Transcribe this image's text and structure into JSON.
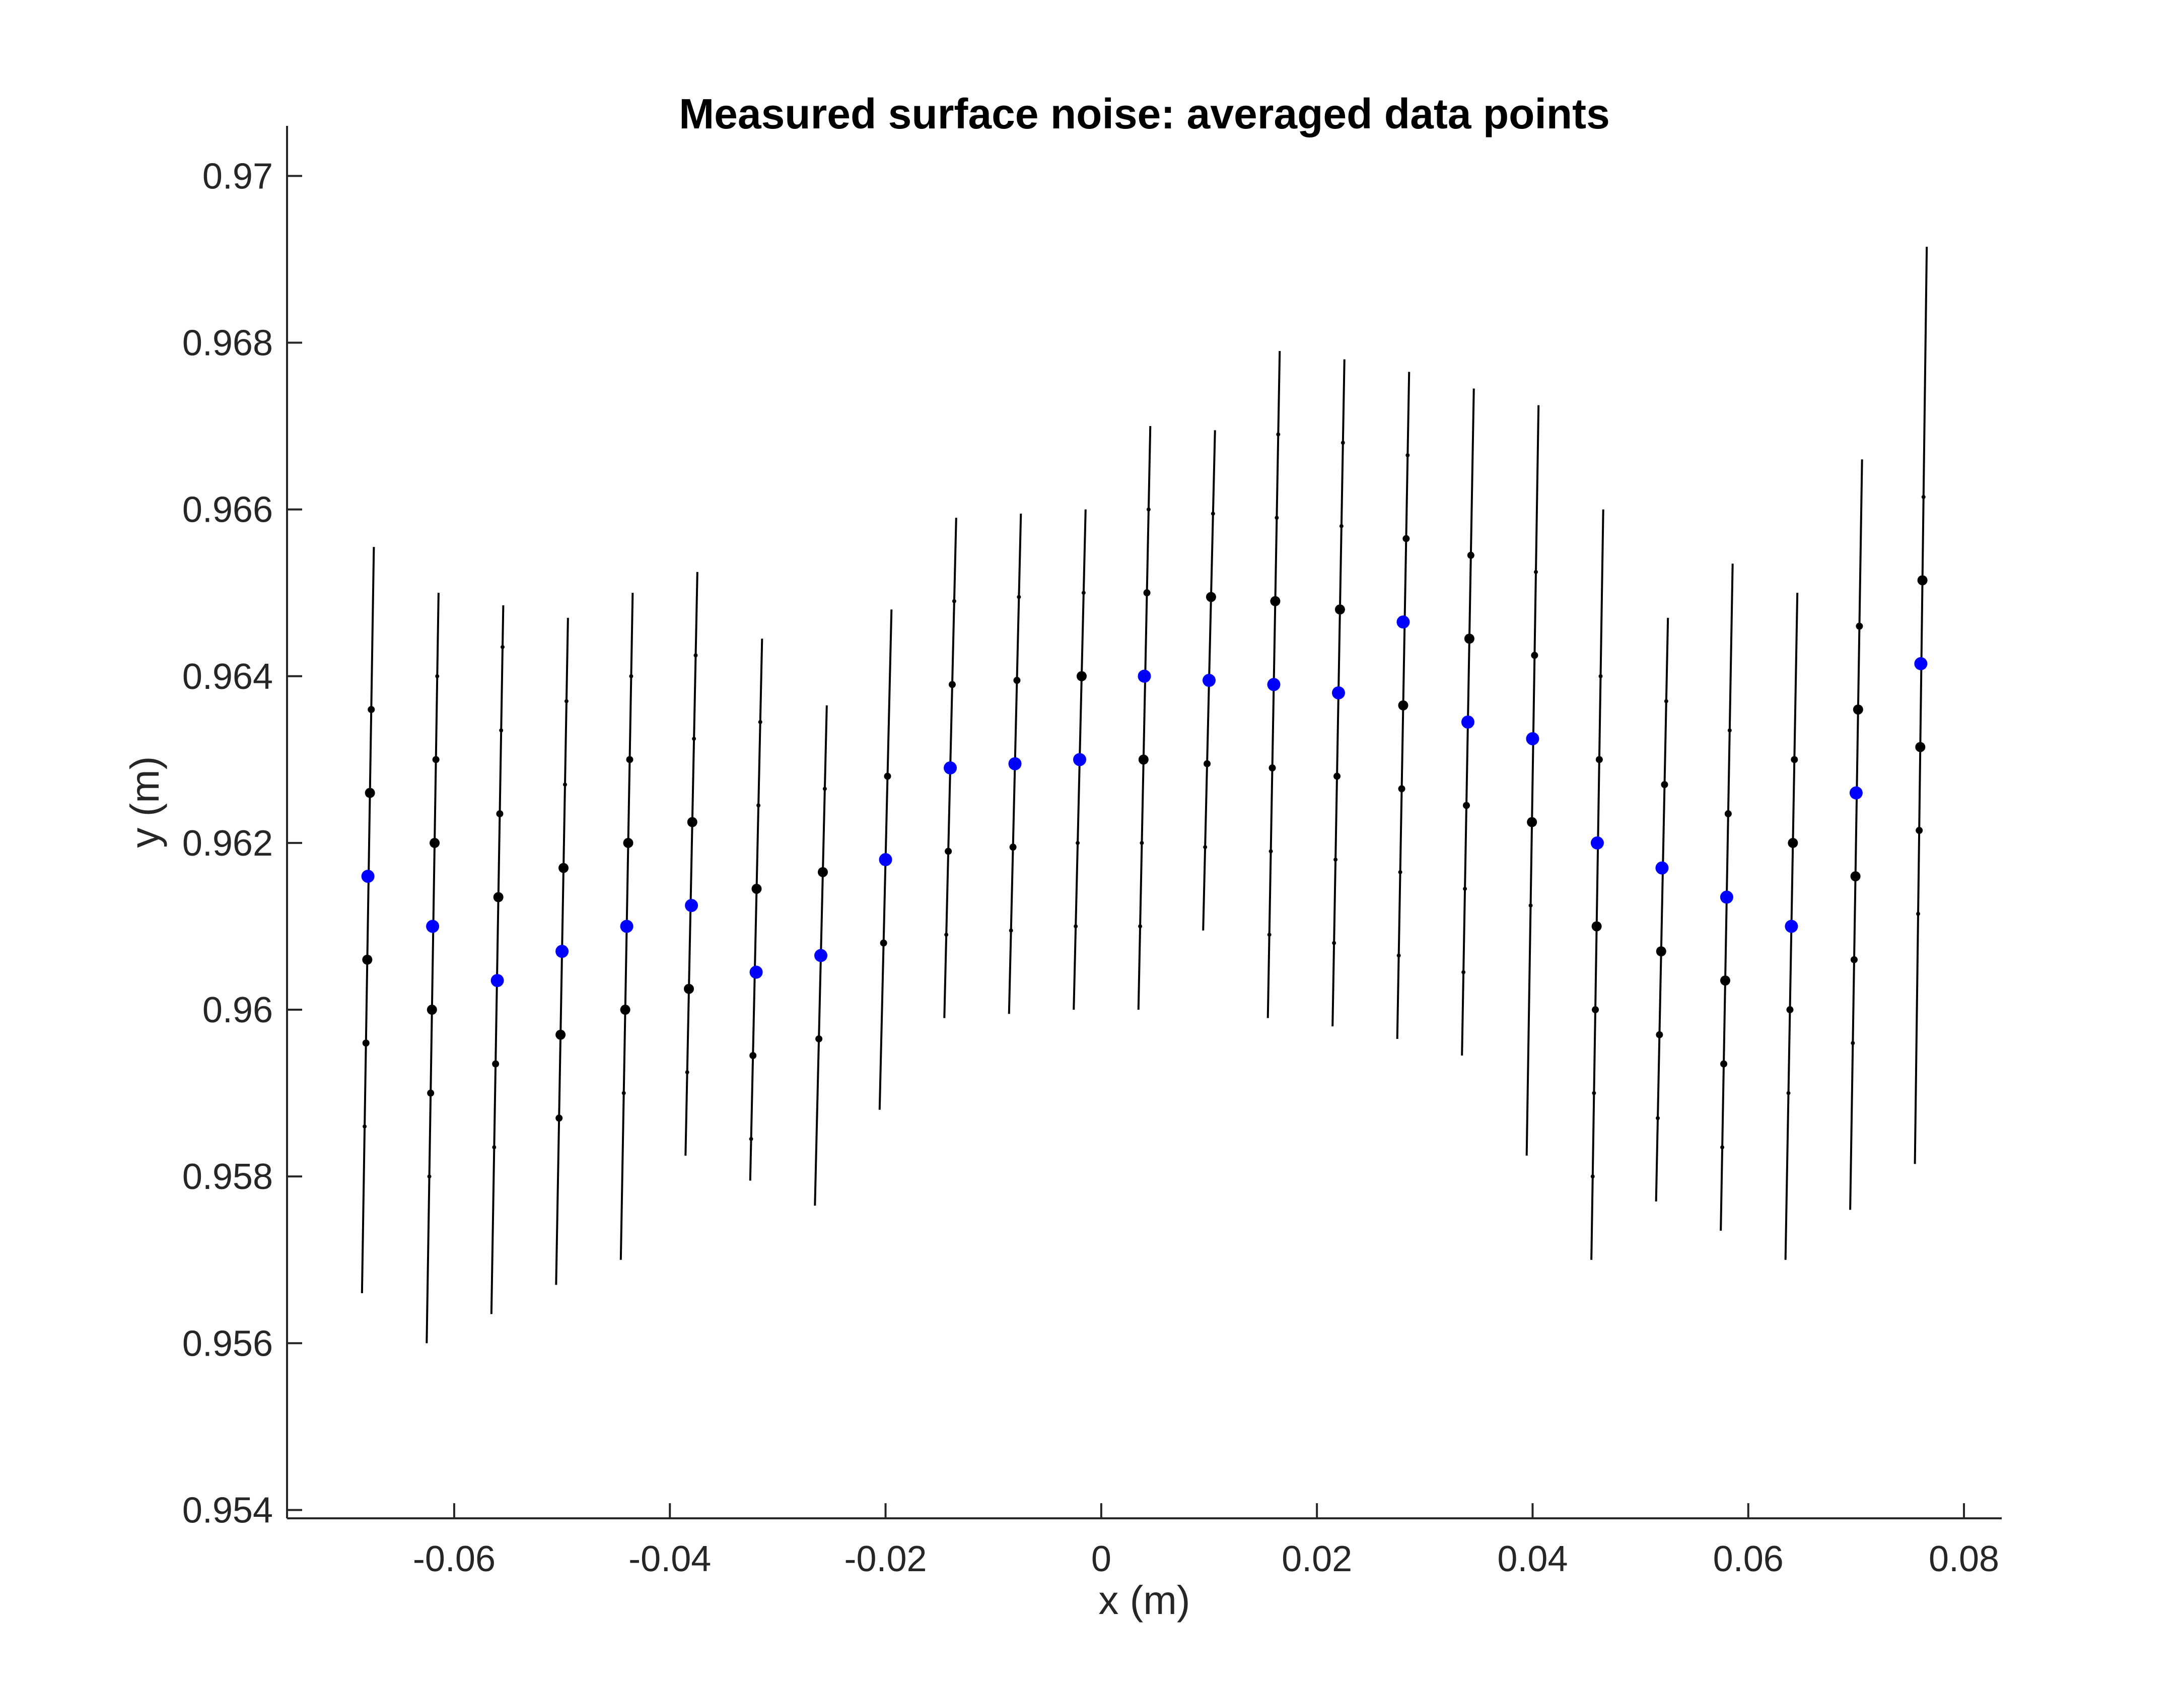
{
  "chart_data": {
    "type": "scatter",
    "title": "Measured surface noise: averaged data points",
    "xlabel": "x (m)",
    "ylabel": "y (m)",
    "xlim": [
      -0.0755,
      0.0835
    ],
    "ylim": [
      0.9539,
      0.9706
    ],
    "grid": false,
    "x_ticks": [
      -0.06,
      -0.04,
      -0.02,
      0,
      0.02,
      0.04,
      0.06,
      0.08
    ],
    "x_tick_labels": [
      "-0.06",
      "-0.04",
      "-0.02",
      "0",
      "0.02",
      "0.04",
      "0.06",
      "0.08"
    ],
    "y_ticks": [
      0.954,
      0.956,
      0.958,
      0.96,
      0.962,
      0.964,
      0.966,
      0.968,
      0.97
    ],
    "y_tick_labels": [
      "0.954",
      "0.956",
      "0.958",
      "0.96",
      "0.962",
      "0.964",
      "0.966",
      "0.968",
      "0.97"
    ],
    "colors": {
      "averaged": "#0000ff",
      "measured": "#000000",
      "line": "#000000",
      "axis": "#262626"
    },
    "series": [
      {
        "marker": "averaged",
        "x": [
          -0.068,
          -0.062,
          -0.056,
          -0.05,
          -0.044,
          -0.038,
          -0.032,
          -0.026,
          -0.02,
          -0.014,
          -0.008,
          -0.002,
          0.004,
          0.01,
          0.016,
          0.022,
          0.028,
          0.034,
          0.04,
          0.046,
          0.052,
          0.058,
          0.064,
          0.07,
          0.076
        ],
        "y": [
          0.9616,
          0.961,
          0.96035,
          0.9607,
          0.961,
          0.96125,
          0.96045,
          0.96065,
          0.9618,
          0.9629,
          0.96295,
          0.963,
          0.964,
          0.96395,
          0.9639,
          0.9638,
          0.96465,
          0.96345,
          0.96325,
          0.962,
          0.9617,
          0.96135,
          0.961,
          0.9626,
          0.96415
        ]
      }
    ],
    "columns": [
      {
        "top": 0.96555,
        "bottom": 0.9566,
        "points": [
          0.9636,
          0.9626,
          0.9606,
          0.9596,
          0.9586
        ],
        "sizes": [
          2,
          3,
          3,
          2,
          1
        ]
      },
      {
        "top": 0.965,
        "bottom": 0.956,
        "points": [
          0.964,
          0.963,
          0.962,
          0.96,
          0.959,
          0.958
        ],
        "sizes": [
          1,
          2,
          3,
          3,
          2,
          1
        ]
      },
      {
        "top": 0.96485,
        "bottom": 0.95635,
        "points": [
          0.96435,
          0.96335,
          0.96235,
          0.96135,
          0.95935,
          0.95835
        ],
        "sizes": [
          1,
          1,
          2,
          3,
          2,
          1
        ]
      },
      {
        "top": 0.9647,
        "bottom": 0.9567,
        "points": [
          0.9637,
          0.9627,
          0.9617,
          0.9597,
          0.9587
        ],
        "sizes": [
          1,
          1,
          3,
          3,
          2
        ]
      },
      {
        "top": 0.965,
        "bottom": 0.957,
        "points": [
          0.964,
          0.963,
          0.962,
          0.96,
          0.959
        ],
        "sizes": [
          1,
          2,
          3,
          3,
          1
        ]
      },
      {
        "top": 0.96525,
        "bottom": 0.95825,
        "points": [
          0.96425,
          0.96325,
          0.96225,
          0.96025,
          0.95925
        ],
        "sizes": [
          1,
          1,
          3,
          3,
          1
        ]
      },
      {
        "top": 0.96445,
        "bottom": 0.95795,
        "points": [
          0.96345,
          0.96245,
          0.96145,
          0.95945,
          0.95845
        ],
        "sizes": [
          1,
          1,
          3,
          2,
          1
        ]
      },
      {
        "top": 0.96365,
        "bottom": 0.95765,
        "points": [
          0.96265,
          0.96165,
          0.95965
        ],
        "sizes": [
          1,
          3,
          2
        ]
      },
      {
        "top": 0.9648,
        "bottom": 0.9588,
        "points": [
          0.9628,
          0.9608
        ],
        "sizes": [
          2,
          2
        ]
      },
      {
        "top": 0.9659,
        "bottom": 0.9599,
        "points": [
          0.9649,
          0.9639,
          0.9619,
          0.9609
        ],
        "sizes": [
          1,
          2,
          2,
          1
        ]
      },
      {
        "top": 0.96595,
        "bottom": 0.95995,
        "points": [
          0.96495,
          0.96395,
          0.96195,
          0.96095
        ],
        "sizes": [
          1,
          2,
          2,
          1
        ]
      },
      {
        "top": 0.966,
        "bottom": 0.96,
        "points": [
          0.965,
          0.964,
          0.962,
          0.961
        ],
        "sizes": [
          1,
          3,
          1,
          1
        ]
      },
      {
        "top": 0.967,
        "bottom": 0.96,
        "points": [
          0.966,
          0.965,
          0.963,
          0.962,
          0.961
        ],
        "sizes": [
          1,
          2,
          3,
          1,
          1
        ]
      },
      {
        "top": 0.96695,
        "bottom": 0.96095,
        "points": [
          0.96595,
          0.96495,
          0.96295,
          0.96195
        ],
        "sizes": [
          1,
          3,
          2,
          1
        ]
      },
      {
        "top": 0.9679,
        "bottom": 0.9599,
        "points": [
          0.9669,
          0.9659,
          0.9649,
          0.9629,
          0.9619,
          0.9609
        ],
        "sizes": [
          1,
          1,
          3,
          2,
          1,
          1
        ]
      },
      {
        "top": 0.9678,
        "bottom": 0.9598,
        "points": [
          0.9668,
          0.9658,
          0.9648,
          0.9628,
          0.9618,
          0.9608
        ],
        "sizes": [
          1,
          1,
          3,
          2,
          1,
          1
        ]
      },
      {
        "top": 0.96765,
        "bottom": 0.95965,
        "points": [
          0.96665,
          0.96565,
          0.96365,
          0.96265,
          0.96165,
          0.96065
        ],
        "sizes": [
          1,
          2,
          3,
          2,
          1,
          1
        ]
      },
      {
        "top": 0.96745,
        "bottom": 0.95945,
        "points": [
          0.96545,
          0.96445,
          0.96245,
          0.96145,
          0.96045
        ],
        "sizes": [
          2,
          3,
          2,
          1,
          1
        ]
      },
      {
        "top": 0.96725,
        "bottom": 0.95825,
        "points": [
          0.96525,
          0.96425,
          0.96225,
          0.96125
        ],
        "sizes": [
          1,
          2,
          3,
          1
        ]
      },
      {
        "top": 0.966,
        "bottom": 0.957,
        "points": [
          0.964,
          0.963,
          0.961,
          0.96,
          0.959,
          0.958
        ],
        "sizes": [
          1,
          2,
          3,
          2,
          1,
          1
        ]
      },
      {
        "top": 0.9647,
        "bottom": 0.9577,
        "points": [
          0.9637,
          0.9627,
          0.9607,
          0.9597,
          0.9587
        ],
        "sizes": [
          1,
          2,
          3,
          2,
          1
        ]
      },
      {
        "top": 0.96535,
        "bottom": 0.95735,
        "points": [
          0.96335,
          0.96235,
          0.96035,
          0.95935,
          0.95835
        ],
        "sizes": [
          1,
          2,
          3,
          2,
          1
        ]
      },
      {
        "top": 0.965,
        "bottom": 0.957,
        "points": [
          0.963,
          0.962,
          0.96,
          0.959
        ],
        "sizes": [
          2,
          3,
          2,
          1
        ]
      },
      {
        "top": 0.9666,
        "bottom": 0.9576,
        "points": [
          0.9646,
          0.9636,
          0.9616,
          0.9606,
          0.9596
        ],
        "sizes": [
          2,
          3,
          3,
          2,
          1
        ]
      },
      {
        "top": 0.96915,
        "bottom": 0.95815,
        "points": [
          0.96615,
          0.96515,
          0.96315,
          0.96215,
          0.96115
        ],
        "sizes": [
          1,
          3,
          3,
          2,
          1
        ]
      }
    ]
  }
}
